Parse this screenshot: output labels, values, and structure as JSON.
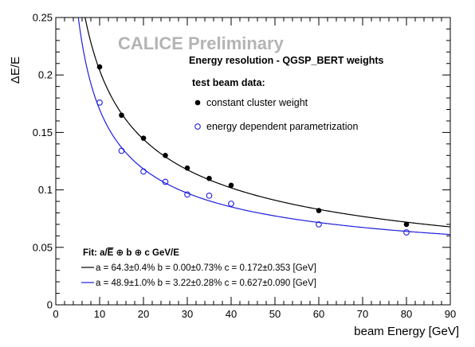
{
  "chart_data": {
    "type": "scatter",
    "xlabel": "beam Energy [GeV]",
    "ylabel": "ΔE/E",
    "xlim": [
      0,
      90
    ],
    "ylim": [
      0,
      0.25
    ],
    "x_ticks": [
      0,
      10,
      20,
      30,
      40,
      50,
      60,
      70,
      80,
      90
    ],
    "y_ticks": [
      0,
      0.05,
      0.1,
      0.15,
      0.2,
      0.25
    ],
    "x_tick_labels": [
      "0",
      "10",
      "20",
      "30",
      "40",
      "50",
      "60",
      "70",
      "80",
      "90"
    ],
    "y_tick_labels": [
      "0",
      "0.05",
      "0.1",
      "0.15",
      "0.2",
      "0.25"
    ],
    "grid": false,
    "series": [
      {
        "name": "constant cluster weight",
        "color": "#000000",
        "marker": "filled-circle",
        "x": [
          10,
          15,
          20,
          25,
          30,
          35,
          40,
          60,
          80
        ],
        "y": [
          0.207,
          0.165,
          0.145,
          0.13,
          0.119,
          0.11,
          0.104,
          0.082,
          0.07
        ],
        "fit": {
          "a": 0.643,
          "b": 0.0,
          "c": 0.172
        }
      },
      {
        "name": "energy dependent parametrization",
        "color": "#1f1fdc",
        "marker": "open-circle",
        "x": [
          10,
          15,
          20,
          25,
          30,
          35,
          40,
          60,
          80
        ],
        "y": [
          0.176,
          0.134,
          0.116,
          0.107,
          0.096,
          0.095,
          0.088,
          0.07,
          0.063
        ],
        "fit": {
          "a": 0.489,
          "b": 0.0322,
          "c": 0.627
        }
      }
    ],
    "watermark": "CALICE Preliminary",
    "legend": {
      "title": "Energy resolution - QGSP_BERT weights",
      "subtitle": "test beam data:",
      "placement": "top-right"
    },
    "fit_box": {
      "heading_prefix": "Fit: a/",
      "heading_sqrt": "E",
      "heading_suffix": " ⊕ b ⊕ c GeV/E",
      "lines": [
        "a = 64.3±0.4%  b = 0.00±0.73% c = 0.172±0.353 [GeV]",
        "a = 48.9±1.0%  b = 3.22±0.28% c = 0.627±0.090 [GeV]"
      ],
      "placement": "bottom-left"
    }
  }
}
